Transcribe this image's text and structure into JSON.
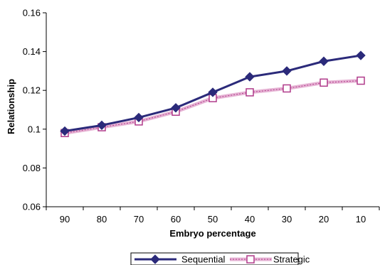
{
  "chart_data": {
    "type": "line",
    "title": "",
    "xlabel": "Embryo percentage",
    "ylabel": "Relationship",
    "categories": [
      "90",
      "80",
      "70",
      "60",
      "50",
      "40",
      "30",
      "20",
      "10"
    ],
    "ylim": [
      0.06,
      0.16
    ],
    "yticks": [
      "0.06",
      "0.08",
      "0.1",
      "0.12",
      "0.14",
      "0.16"
    ],
    "grid": false,
    "legend_position": "bottom",
    "series": [
      {
        "name": "Sequential",
        "values": [
          0.099,
          0.102,
          0.106,
          0.111,
          0.119,
          0.127,
          0.13,
          0.135,
          0.138
        ],
        "color": "#2b2a7a",
        "marker": "filled-diamond"
      },
      {
        "name": "Strategic",
        "values": [
          0.098,
          0.101,
          0.104,
          0.109,
          0.116,
          0.119,
          0.121,
          0.124,
          0.125
        ],
        "color": "#b03a8a",
        "marker": "open-square"
      }
    ]
  }
}
